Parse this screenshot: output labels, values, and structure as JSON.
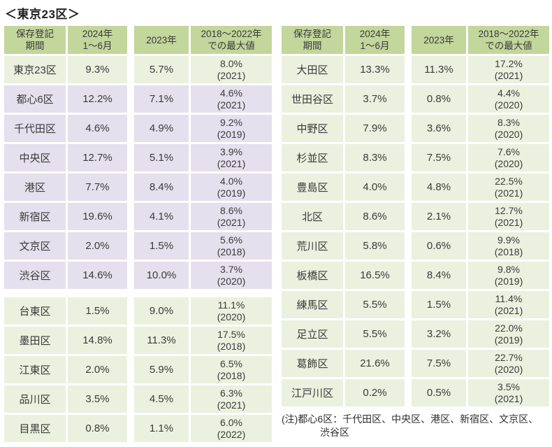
{
  "title": "＜東京23区＞",
  "colors": {
    "header_bg": "#C3D69B",
    "green_row_bg": "#EBF1DE",
    "purple_row_bg": "#E5E0ED",
    "text": "#3A3A3A",
    "page_bg": "#FFFFFF"
  },
  "chart_data": {
    "type": "table",
    "title": "＜東京23区＞",
    "column_headers": [
      "保存登記\n期間",
      "2024年\n1～6月",
      "2023年",
      "2018～2022年\nでの最大値"
    ],
    "tables": [
      {
        "position": "left",
        "rows": [
          {
            "ward": "東京23区",
            "h1_2024": "9.3%",
            "y2023": "5.7%",
            "max_value": "8.0%",
            "max_year": "(2021)",
            "tone": "green"
          },
          {
            "ward": "都心6区",
            "h1_2024": "12.2%",
            "y2023": "7.1%",
            "max_value": "4.6%",
            "max_year": "(2021)",
            "tone": "purple"
          },
          {
            "ward": "千代田区",
            "h1_2024": "4.6%",
            "y2023": "4.9%",
            "max_value": "9.2%",
            "max_year": "(2019)",
            "tone": "purple"
          },
          {
            "ward": "中央区",
            "h1_2024": "12.7%",
            "y2023": "5.1%",
            "max_value": "3.9%",
            "max_year": "(2021)",
            "tone": "purple"
          },
          {
            "ward": "港区",
            "h1_2024": "7.7%",
            "y2023": "8.4%",
            "max_value": "4.0%",
            "max_year": "(2019)",
            "tone": "purple"
          },
          {
            "ward": "新宿区",
            "h1_2024": "19.6%",
            "y2023": "4.1%",
            "max_value": "8.6%",
            "max_year": "(2021)",
            "tone": "purple"
          },
          {
            "ward": "文京区",
            "h1_2024": "2.0%",
            "y2023": "1.5%",
            "max_value": "5.6%",
            "max_year": "(2018)",
            "tone": "purple"
          },
          {
            "ward": "渋谷区",
            "h1_2024": "14.6%",
            "y2023": "10.0%",
            "max_value": "3.7%",
            "max_year": "(2020)",
            "tone": "purple",
            "section_break_after": true
          },
          {
            "ward": "台東区",
            "h1_2024": "1.5%",
            "y2023": "9.0%",
            "max_value": "11.1%",
            "max_year": "(2020)",
            "tone": "green"
          },
          {
            "ward": "墨田区",
            "h1_2024": "14.8%",
            "y2023": "11.3%",
            "max_value": "17.5%",
            "max_year": "(2018)",
            "tone": "green"
          },
          {
            "ward": "江東区",
            "h1_2024": "2.0%",
            "y2023": "5.9%",
            "max_value": "6.5%",
            "max_year": "(2018)",
            "tone": "green"
          },
          {
            "ward": "品川区",
            "h1_2024": "3.5%",
            "y2023": "4.5%",
            "max_value": "6.3%",
            "max_year": "(2021)",
            "tone": "green"
          },
          {
            "ward": "目黒区",
            "h1_2024": "0.8%",
            "y2023": "1.1%",
            "max_value": "6.0%",
            "max_year": "(2022)",
            "tone": "green"
          }
        ]
      },
      {
        "position": "right",
        "rows": [
          {
            "ward": "大田区",
            "h1_2024": "13.3%",
            "y2023": "11.3%",
            "max_value": "17.2%",
            "max_year": "(2021)",
            "tone": "green"
          },
          {
            "ward": "世田谷区",
            "h1_2024": "3.7%",
            "y2023": "0.8%",
            "max_value": "4.4%",
            "max_year": "(2020)",
            "tone": "green"
          },
          {
            "ward": "中野区",
            "h1_2024": "7.9%",
            "y2023": "3.6%",
            "max_value": "8.3%",
            "max_year": "(2020)",
            "tone": "green"
          },
          {
            "ward": "杉並区",
            "h1_2024": "8.3%",
            "y2023": "7.5%",
            "max_value": "7.6%",
            "max_year": "(2020)",
            "tone": "green"
          },
          {
            "ward": "豊島区",
            "h1_2024": "4.0%",
            "y2023": "4.8%",
            "max_value": "22.5%",
            "max_year": "(2021)",
            "tone": "green"
          },
          {
            "ward": "北区",
            "h1_2024": "8.6%",
            "y2023": "2.1%",
            "max_value": "12.7%",
            "max_year": "(2021)",
            "tone": "green"
          },
          {
            "ward": "荒川区",
            "h1_2024": "5.8%",
            "y2023": "0.6%",
            "max_value": "9.9%",
            "max_year": "(2018)",
            "tone": "green"
          },
          {
            "ward": "板橋区",
            "h1_2024": "16.5%",
            "y2023": "8.4%",
            "max_value": "9.8%",
            "max_year": "(2019)",
            "tone": "green"
          },
          {
            "ward": "練馬区",
            "h1_2024": "5.5%",
            "y2023": "1.5%",
            "max_value": "11.4%",
            "max_year": "(2021)",
            "tone": "green"
          },
          {
            "ward": "足立区",
            "h1_2024": "5.5%",
            "y2023": "3.2%",
            "max_value": "22.0%",
            "max_year": "(2019)",
            "tone": "green"
          },
          {
            "ward": "葛飾区",
            "h1_2024": "21.6%",
            "y2023": "7.5%",
            "max_value": "22.7%",
            "max_year": "(2020)",
            "tone": "green"
          },
          {
            "ward": "江戸川区",
            "h1_2024": "0.2%",
            "y2023": "0.5%",
            "max_value": "3.5%",
            "max_year": "(2021)",
            "tone": "green"
          }
        ]
      }
    ],
    "note_lines": [
      "(注)都心6区：千代田区、中央区、港区、新宿区、文京区、",
      "渋谷区"
    ]
  }
}
